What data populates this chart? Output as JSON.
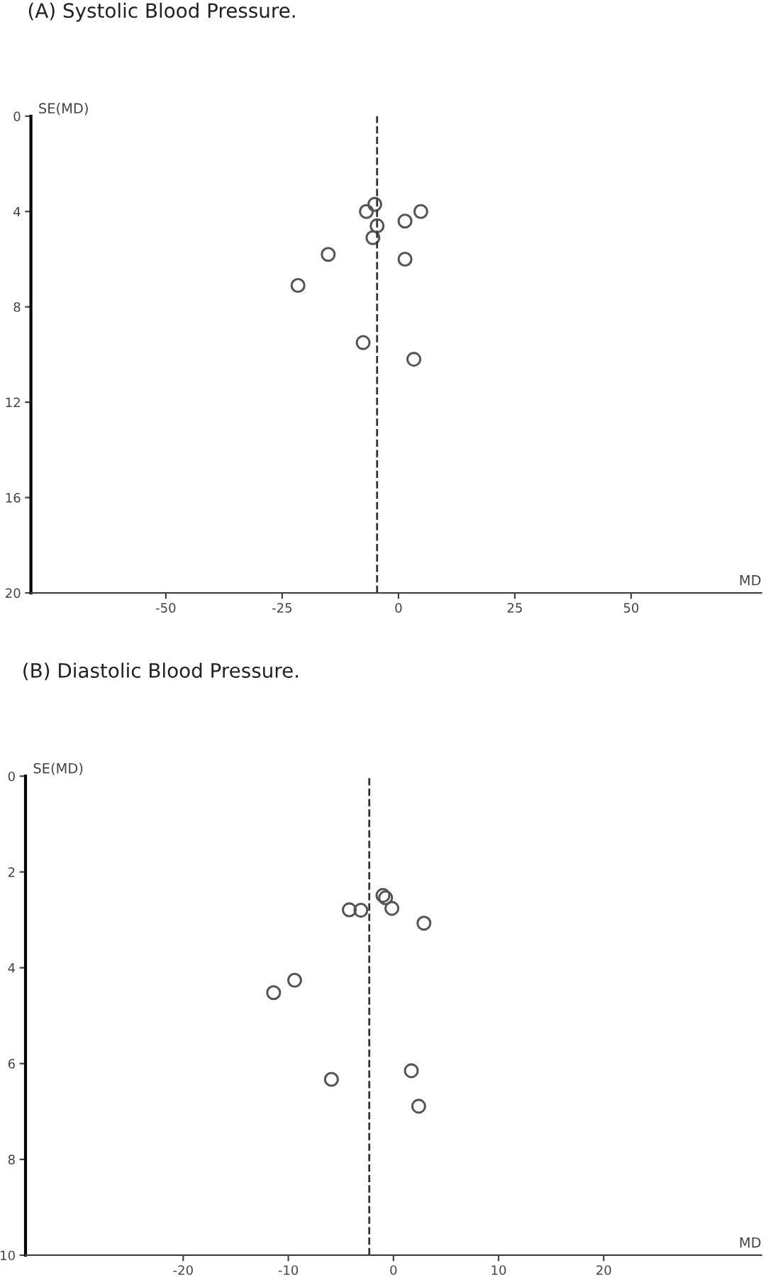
{
  "chart_data": [
    {
      "type": "scatter",
      "title": "(A) Systolic Blood Pressure.",
      "xlabel": "MD",
      "ylabel": "SE(MD)",
      "series": [
        {
          "color": "#555555",
          "x": [
            -5.1,
            -6.9,
            4.8,
            1.4,
            -4.6,
            -5.5,
            -15.1,
            1.4,
            -21.6,
            -7.6,
            3.3
          ],
          "values": [
            3.7,
            4.0,
            4.0,
            4.4,
            4.6,
            5.1,
            5.8,
            6.0,
            7.1,
            9.5,
            10.2
          ]
        }
      ],
      "marker": "circle",
      "grid": false,
      "ref_lines": [
        {
          "axis": "x",
          "value": -4.6,
          "color": "#333333",
          "line_style": "dashed"
        }
      ],
      "xlim": [
        -79,
        78
      ],
      "xticks": [
        -50,
        -25,
        0,
        25,
        50
      ],
      "ylim": [
        20,
        0
      ],
      "yticks": [
        0,
        4,
        8,
        12,
        16,
        20
      ]
    },
    {
      "type": "scatter",
      "title": "(B) Diastolic Blood Pressure.",
      "xlabel": "MD",
      "ylabel": "SE(MD)",
      "series": [
        {
          "color": "#555555",
          "x": [
            -1.0,
            -0.75,
            -4.2,
            -3.1,
            -0.15,
            2.9,
            -9.4,
            -11.4,
            -5.9,
            1.7,
            2.4
          ],
          "values": [
            2.49,
            2.54,
            2.79,
            2.8,
            2.76,
            3.07,
            4.26,
            4.52,
            6.33,
            6.15,
            6.89
          ]
        }
      ],
      "marker": "circle",
      "grid": false,
      "ref_lines": [
        {
          "axis": "x",
          "value": -2.3,
          "color": "#333333",
          "line_style": "dashed"
        }
      ],
      "xlim": [
        -35,
        35
      ],
      "xticks": [
        -20,
        -10,
        0,
        10,
        20
      ],
      "ylim": [
        10,
        0
      ],
      "yticks": [
        0,
        2,
        4,
        6,
        8,
        10
      ]
    }
  ]
}
